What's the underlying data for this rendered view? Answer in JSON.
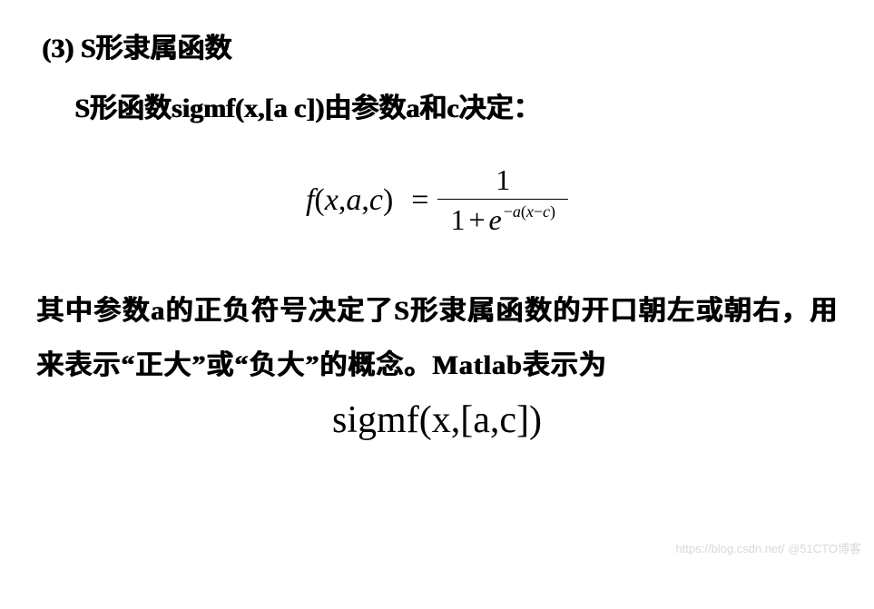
{
  "heading": "(3) S形隶属函数",
  "subline": "S形函数sigmf(x,[a c])由参数a和c决定：",
  "formula": {
    "lhs_f": "f",
    "lhs_open": "(",
    "lhs_x": "x",
    "lhs_c1": ",",
    "lhs_a": "a",
    "lhs_c2": ",",
    "lhs_c": "c",
    "lhs_close": ")",
    "eq": "=",
    "num": "1",
    "den_one": "1",
    "den_plus": "+",
    "den_e": "e",
    "exp_minus": "−",
    "exp_a": "a",
    "exp_open": "(",
    "exp_x": "x",
    "exp_minus2": "−",
    "exp_c": "c",
    "exp_close": ")"
  },
  "body": "其中参数a的正负符号决定了S形隶属函数的开口朝左或朝右，用来表示“正大”或“负大”的概念。Matlab表示为",
  "matlab": "sigmf(x,[a,c])",
  "watermark": "https://blog.csdn.net/  @51CTO博客"
}
